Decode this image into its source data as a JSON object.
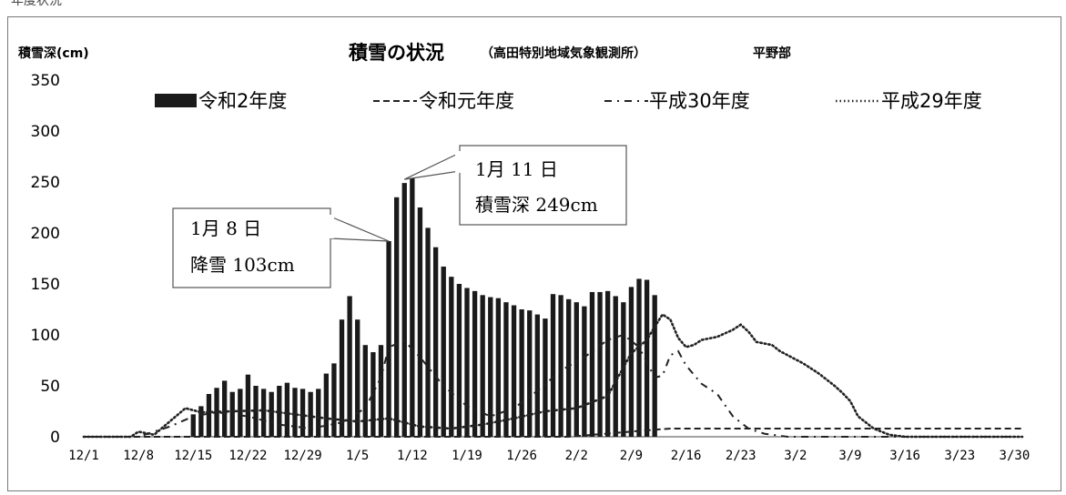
{
  "page": {
    "top_fragment": "年度状況"
  },
  "chart_data": {
    "type": "bar",
    "title": "積雪の状況",
    "subtitle": "（高田特別地域気象観測所）",
    "subtitle2": "平野部",
    "ylabel": "積雪深(cm)",
    "xlabel": "",
    "ylim": [
      0,
      350
    ],
    "yticks": [
      "0",
      "50",
      "100",
      "150",
      "200",
      "250",
      "300",
      "350"
    ],
    "xtick_labels": [
      "12/1",
      "12/8",
      "12/15",
      "12/22",
      "12/29",
      "1/5",
      "1/12",
      "1/19",
      "1/26",
      "2/2",
      "2/9",
      "2/16",
      "2/23",
      "3/2",
      "3/9",
      "3/16",
      "3/23",
      "3/30"
    ],
    "x_start": "12/1",
    "x_end": "3/31",
    "grid": false,
    "legend_placement": "top",
    "legend": [
      "令和2年度",
      "令和元年度",
      "平成30年度",
      "平成29年度"
    ],
    "colors": {
      "bar": "#1a1a1a",
      "line": "#222222",
      "frame": "#777777"
    },
    "series": [
      {
        "name": "令和2年度",
        "style": "bar",
        "points": [
          [
            "12/14",
            0
          ],
          [
            "12/15",
            22
          ],
          [
            "12/16",
            30
          ],
          [
            "12/17",
            42
          ],
          [
            "12/18",
            48
          ],
          [
            "12/19",
            55
          ],
          [
            "12/20",
            44
          ],
          [
            "12/21",
            47
          ],
          [
            "12/22",
            61
          ],
          [
            "12/23",
            50
          ],
          [
            "12/24",
            47
          ],
          [
            "12/25",
            44
          ],
          [
            "12/26",
            50
          ],
          [
            "12/27",
            53
          ],
          [
            "12/28",
            48
          ],
          [
            "12/29",
            47
          ],
          [
            "12/30",
            44
          ],
          [
            "12/31",
            47
          ],
          [
            "1/1",
            62
          ],
          [
            "1/2",
            72
          ],
          [
            "1/3",
            115
          ],
          [
            "1/4",
            138
          ],
          [
            "1/5",
            115
          ],
          [
            "1/6",
            90
          ],
          [
            "1/7",
            83
          ],
          [
            "1/8",
            90
          ],
          [
            "1/9",
            192
          ],
          [
            "1/10",
            235
          ],
          [
            "1/11",
            249
          ],
          [
            "1/12",
            254
          ],
          [
            "1/13",
            225
          ],
          [
            "1/14",
            205
          ],
          [
            "1/15",
            186
          ],
          [
            "1/16",
            167
          ],
          [
            "1/17",
            157
          ],
          [
            "1/18",
            150
          ],
          [
            "1/19",
            146
          ],
          [
            "1/20",
            143
          ],
          [
            "1/21",
            139
          ],
          [
            "1/22",
            137
          ],
          [
            "1/23",
            136
          ],
          [
            "1/24",
            132
          ],
          [
            "1/25",
            129
          ],
          [
            "1/26",
            125
          ],
          [
            "1/27",
            124
          ],
          [
            "1/28",
            120
          ],
          [
            "1/29",
            116
          ],
          [
            "1/30",
            140
          ],
          [
            "1/31",
            139
          ],
          [
            "2/1",
            135
          ],
          [
            "2/2",
            132
          ],
          [
            "2/3",
            128
          ],
          [
            "2/4",
            142
          ],
          [
            "2/5",
            142
          ],
          [
            "2/6",
            143
          ],
          [
            "2/7",
            138
          ],
          [
            "2/8",
            132
          ],
          [
            "2/9",
            147
          ],
          [
            "2/10",
            155
          ],
          [
            "2/11",
            154
          ],
          [
            "2/12",
            139
          ]
        ]
      },
      {
        "name": "令和元年度",
        "style": "dashed",
        "points": [
          [
            "12/1",
            0
          ],
          [
            "12/20",
            0
          ],
          [
            "1/5",
            0
          ],
          [
            "2/1",
            0
          ],
          [
            "2/12",
            7
          ],
          [
            "2/14",
            8
          ],
          [
            "3/31",
            8
          ]
        ]
      },
      {
        "name": "平成30年度",
        "style": "dash-dot",
        "points": [
          [
            "12/1",
            0
          ],
          [
            "12/8",
            0
          ],
          [
            "12/12",
            10
          ],
          [
            "12/15",
            20
          ],
          [
            "12/18",
            24
          ],
          [
            "12/22",
            20
          ],
          [
            "12/26",
            12
          ],
          [
            "12/30",
            8
          ],
          [
            "1/3",
            14
          ],
          [
            "1/6",
            28
          ],
          [
            "1/8",
            58
          ],
          [
            "1/9",
            88
          ],
          [
            "1/11",
            94
          ],
          [
            "1/13",
            78
          ],
          [
            "1/16",
            50
          ],
          [
            "1/19",
            30
          ],
          [
            "1/22",
            20
          ],
          [
            "1/25",
            28
          ],
          [
            "1/28",
            45
          ],
          [
            "1/31",
            65
          ],
          [
            "2/3",
            78
          ],
          [
            "2/6",
            95
          ],
          [
            "2/8",
            100
          ],
          [
            "2/10",
            88
          ],
          [
            "2/12",
            58
          ],
          [
            "2/13",
            60
          ],
          [
            "2/14",
            80
          ],
          [
            "2/15",
            84
          ],
          [
            "2/16",
            70
          ],
          [
            "2/18",
            52
          ],
          [
            "2/20",
            42
          ],
          [
            "2/22",
            20
          ],
          [
            "2/24",
            8
          ],
          [
            "2/26",
            3
          ],
          [
            "3/1",
            0
          ],
          [
            "3/31",
            0
          ]
        ]
      },
      {
        "name": "平成29年度",
        "style": "dotted",
        "points": [
          [
            "12/1",
            0
          ],
          [
            "12/7",
            0
          ],
          [
            "12/8",
            5
          ],
          [
            "12/10",
            2
          ],
          [
            "12/12",
            15
          ],
          [
            "12/14",
            28
          ],
          [
            "12/16",
            24
          ],
          [
            "12/20",
            25
          ],
          [
            "12/24",
            26
          ],
          [
            "12/28",
            22
          ],
          [
            "1/1",
            18
          ],
          [
            "1/5",
            15
          ],
          [
            "1/9",
            18
          ],
          [
            "1/13",
            10
          ],
          [
            "1/17",
            8
          ],
          [
            "1/21",
            12
          ],
          [
            "1/25",
            18
          ],
          [
            "1/29",
            25
          ],
          [
            "2/2",
            28
          ],
          [
            "2/6",
            40
          ],
          [
            "2/9",
            82
          ],
          [
            "2/11",
            95
          ],
          [
            "2/12",
            108
          ],
          [
            "2/13",
            120
          ],
          [
            "2/14",
            115
          ],
          [
            "2/15",
            97
          ],
          [
            "2/16",
            88
          ],
          [
            "2/17",
            90
          ],
          [
            "2/18",
            95
          ],
          [
            "2/20",
            98
          ],
          [
            "2/22",
            105
          ],
          [
            "2/23",
            110
          ],
          [
            "2/24",
            103
          ],
          [
            "2/25",
            93
          ],
          [
            "2/27",
            90
          ],
          [
            "2/28",
            84
          ],
          [
            "3/1",
            80
          ],
          [
            "3/3",
            72
          ],
          [
            "3/5",
            62
          ],
          [
            "3/7",
            50
          ],
          [
            "3/8",
            43
          ],
          [
            "3/9",
            35
          ],
          [
            "3/10",
            20
          ],
          [
            "3/12",
            8
          ],
          [
            "3/14",
            2
          ],
          [
            "3/16",
            0
          ],
          [
            "3/31",
            0
          ]
        ]
      }
    ],
    "annotations": [
      {
        "line1": "1月 8 日",
        "line2": "降雪 103cm",
        "pointer": [
          "1/9",
          192
        ]
      },
      {
        "line1": "1月 11 日",
        "line2": "積雪深 249cm",
        "pointer": [
          "1/11",
          249
        ]
      }
    ]
  }
}
